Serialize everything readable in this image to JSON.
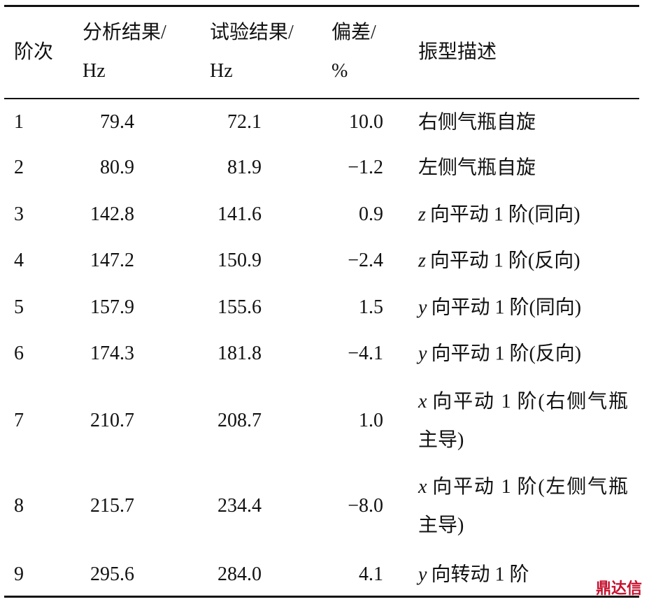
{
  "table": {
    "header": [
      "阶次",
      "分析结果/",
      "Hz",
      "试验结果/",
      "Hz",
      "偏差/",
      "%",
      "振型描述"
    ],
    "rows": [
      [
        "1",
        "79.4",
        "72.1",
        "10.0",
        {
          "var": "",
          "text": "右侧气瓶自旋"
        }
      ],
      [
        "2",
        "80.9",
        "81.9",
        "−1.2",
        {
          "var": "",
          "text": "左侧气瓶自旋"
        }
      ],
      [
        "3",
        "142.8",
        "141.6",
        "0.9",
        {
          "var": "z",
          "text": "向平动 1 阶(同向)"
        }
      ],
      [
        "4",
        "147.2",
        "150.9",
        "−2.4",
        {
          "var": "z",
          "text": "向平动 1 阶(反向)"
        }
      ],
      [
        "5",
        "157.9",
        "155.6",
        "1.5",
        {
          "var": "y",
          "text": "向平动 1 阶(同向)"
        }
      ],
      [
        "6",
        "174.3",
        "181.8",
        "−4.1",
        {
          "var": "y",
          "text": "向平动 1 阶(反向)"
        }
      ],
      [
        "7",
        "210.7",
        "208.7",
        "1.0",
        {
          "var": "x",
          "text": "向平动 1 阶(右侧气瓶主导)"
        }
      ],
      [
        "8",
        "215.7",
        "234.4",
        "−8.0",
        {
          "var": "x",
          "text": "向平动 1 阶(左侧气瓶主导)"
        }
      ],
      [
        "9",
        "295.6",
        "284.0",
        "4.1",
        {
          "var": "y",
          "text": "向转动 1 阶"
        }
      ]
    ]
  },
  "watermark": "鼎达信"
}
